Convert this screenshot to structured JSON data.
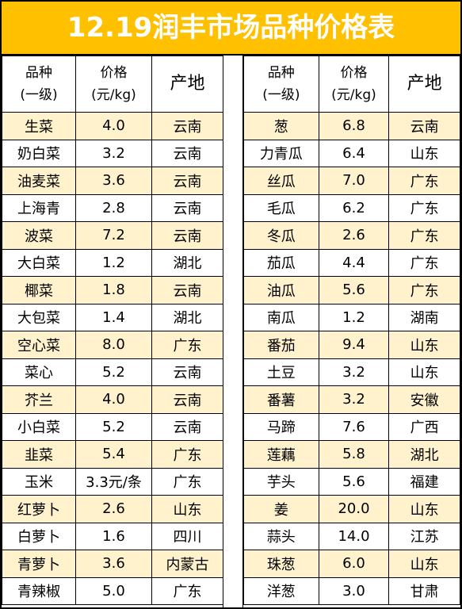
{
  "title": "12.19润丰市场品种价格表",
  "colors": {
    "title_bg": "#FFC000",
    "title_text": "#FFFFFF",
    "alt_row": "#FFF2CC",
    "border": "#000000"
  },
  "header": {
    "name_line1": "品种",
    "name_line2": "(一级)",
    "price_line1": "价格",
    "price_line2": "(元/kg)",
    "origin": "产地"
  },
  "left_rows": [
    {
      "name": "生菜",
      "price": "4.0",
      "origin": "云南"
    },
    {
      "name": "奶白菜",
      "price": "3.2",
      "origin": "云南"
    },
    {
      "name": "油麦菜",
      "price": "3.6",
      "origin": "云南"
    },
    {
      "name": "上海青",
      "price": "2.8",
      "origin": "云南"
    },
    {
      "name": "波菜",
      "price": "7.2",
      "origin": "云南"
    },
    {
      "name": "大白菜",
      "price": "1.2",
      "origin": "湖北"
    },
    {
      "name": "椰菜",
      "price": "1.8",
      "origin": "云南"
    },
    {
      "name": "大包菜",
      "price": "1.4",
      "origin": "湖北"
    },
    {
      "name": "空心菜",
      "price": "8.0",
      "origin": "广东"
    },
    {
      "name": "菜心",
      "price": "5.2",
      "origin": "云南"
    },
    {
      "name": "芥兰",
      "price": "4.0",
      "origin": "云南"
    },
    {
      "name": "小白菜",
      "price": "5.2",
      "origin": "云南"
    },
    {
      "name": "韭菜",
      "price": "5.4",
      "origin": "广东"
    },
    {
      "name": "玉米",
      "price": "3.3元/条",
      "origin": "广东"
    },
    {
      "name": "红萝卜",
      "price": "2.6",
      "origin": "山东"
    },
    {
      "name": "白萝卜",
      "price": "1.6",
      "origin": "四川"
    },
    {
      "name": "青萝卜",
      "price": "3.6",
      "origin": "内蒙古"
    },
    {
      "name": "青辣椒",
      "price": "5.0",
      "origin": "广东"
    }
  ],
  "right_rows": [
    {
      "name": "葱",
      "price": "6.8",
      "origin": "云南"
    },
    {
      "name": "力青瓜",
      "price": "6.4",
      "origin": "山东"
    },
    {
      "name": "丝瓜",
      "price": "7.0",
      "origin": "广东"
    },
    {
      "name": "毛瓜",
      "price": "6.2",
      "origin": "广东"
    },
    {
      "name": "冬瓜",
      "price": "2.6",
      "origin": "广东"
    },
    {
      "name": "茄瓜",
      "price": "4.4",
      "origin": "广东"
    },
    {
      "name": "油瓜",
      "price": "5.6",
      "origin": "广东"
    },
    {
      "name": "南瓜",
      "price": "1.2",
      "origin": "湖南"
    },
    {
      "name": "番茄",
      "price": "9.4",
      "origin": "山东"
    },
    {
      "name": "土豆",
      "price": "3.2",
      "origin": "山东"
    },
    {
      "name": "番薯",
      "price": "3.2",
      "origin": "安徽"
    },
    {
      "name": "马蹄",
      "price": "7.6",
      "origin": "广西"
    },
    {
      "name": "莲藕",
      "price": "5.8",
      "origin": "湖北"
    },
    {
      "name": "芋头",
      "price": "5.6",
      "origin": "福建"
    },
    {
      "name": "姜",
      "price": "20.0",
      "origin": "山东"
    },
    {
      "name": "蒜头",
      "price": "14.0",
      "origin": "江苏"
    },
    {
      "name": "珠葱",
      "price": "6.0",
      "origin": "山东"
    },
    {
      "name": "洋葱",
      "price": "3.0",
      "origin": "甘肃"
    }
  ]
}
